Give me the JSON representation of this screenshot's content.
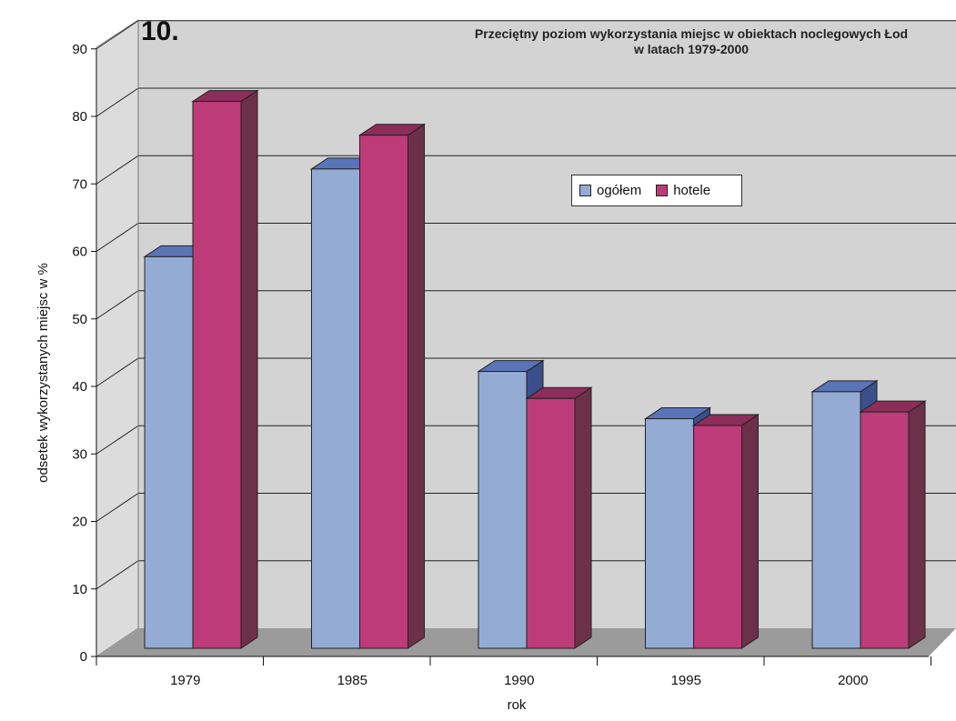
{
  "figure_number": "10.",
  "chart_data": {
    "type": "bar",
    "title_line1": "Przeciętny poziom wykorzystania miejsc w obiektach noclegowych Łod",
    "title_line2": "w latach 1979-2000",
    "xlabel": "rok",
    "ylabel": "odsetek wykorzystanych miejsc w %",
    "categories": [
      "1979",
      "1985",
      "1990",
      "1995",
      "2000"
    ],
    "yticks": [
      "0",
      "10",
      "20",
      "30",
      "40",
      "50",
      "60",
      "70",
      "80",
      "90"
    ],
    "ylim": [
      0,
      90
    ],
    "grid": true,
    "legend_position": "top-right",
    "series": [
      {
        "name": "ogółem",
        "values": [
          58,
          71,
          41,
          34,
          38
        ],
        "color": "#94acd4",
        "top_color": "#5a74b8",
        "side_color": "#3a4f8c"
      },
      {
        "name": "hotele",
        "values": [
          81,
          76,
          37,
          33,
          35
        ],
        "color": "#bd3b78",
        "top_color": "#8c2d5a",
        "side_color": "#6d3049"
      }
    ]
  }
}
